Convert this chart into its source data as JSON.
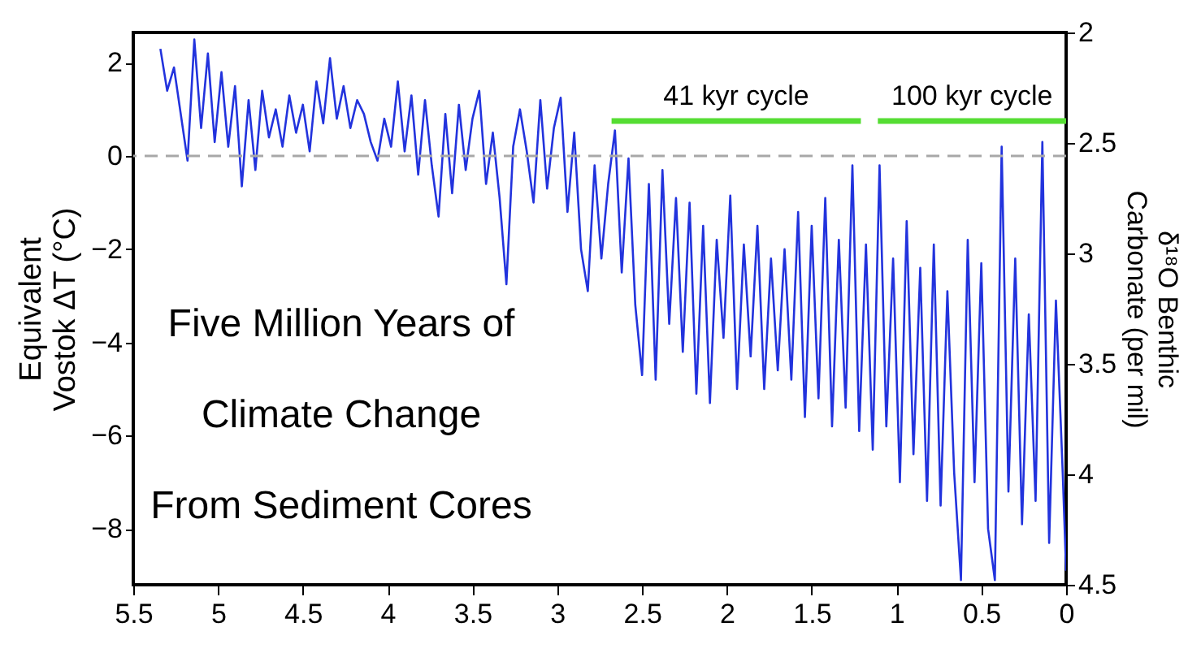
{
  "chart_data": {
    "type": "line",
    "ylabel": "Equivalent\nVostok ΔT (°C)",
    "y2label": "δ¹⁸O Benthic\nCarbonate (per mil)",
    "annotations": [
      "Five Million Years of\nClimate Change\nFrom Sediment Cores"
    ],
    "xlim": [
      5.5,
      0
    ],
    "xticks": [
      5.5,
      5,
      4.5,
      4,
      3.5,
      3,
      2.5,
      2,
      1.5,
      1,
      0.5,
      0
    ],
    "ylim": [
      -9.2,
      2.65
    ],
    "yticks": [
      -8,
      -6,
      -4,
      -2,
      0,
      2
    ],
    "y2lim": [
      4.5,
      2
    ],
    "y2ticks": [
      4.5,
      4,
      3.5,
      3,
      2.5,
      2
    ],
    "grid": false,
    "marker": "none",
    "line_style": "solid",
    "ref_lines": [
      {
        "axis": "y",
        "value": 0,
        "color": "#a8a8a8",
        "line_style": "dashed"
      }
    ],
    "series": [
      {
        "name": "41 kyr cycle",
        "type": "line",
        "color": "#55dd33",
        "x": [
          2.68,
          1.21
        ],
        "values": [
          0.75,
          0.75
        ]
      },
      {
        "name": "100 kyr cycle",
        "type": "line",
        "color": "#55dd33",
        "x": [
          1.11,
          0
        ],
        "values": [
          0.75,
          0.75
        ]
      },
      {
        "color": "#2233dd",
        "x": [
          5.34,
          5.3,
          5.26,
          5.22,
          5.18,
          5.14,
          5.1,
          5.06,
          5.02,
          4.98,
          4.94,
          4.9,
          4.86,
          4.82,
          4.78,
          4.74,
          4.7,
          4.66,
          4.62,
          4.58,
          4.54,
          4.5,
          4.46,
          4.42,
          4.38,
          4.34,
          4.3,
          4.26,
          4.22,
          4.18,
          4.14,
          4.1,
          4.06,
          4.02,
          3.98,
          3.94,
          3.9,
          3.86,
          3.82,
          3.78,
          3.74,
          3.7,
          3.66,
          3.62,
          3.58,
          3.54,
          3.5,
          3.46,
          3.42,
          3.38,
          3.34,
          3.3,
          3.26,
          3.22,
          3.18,
          3.14,
          3.1,
          3.06,
          3.02,
          2.98,
          2.94,
          2.9,
          2.86,
          2.82,
          2.78,
          2.74,
          2.7,
          2.66,
          2.62,
          2.58,
          2.54,
          2.5,
          2.46,
          2.42,
          2.38,
          2.34,
          2.3,
          2.26,
          2.22,
          2.18,
          2.14,
          2.1,
          2.06,
          2.02,
          1.98,
          1.94,
          1.9,
          1.86,
          1.82,
          1.78,
          1.74,
          1.7,
          1.66,
          1.62,
          1.58,
          1.54,
          1.5,
          1.46,
          1.42,
          1.38,
          1.34,
          1.3,
          1.26,
          1.22,
          1.18,
          1.14,
          1.1,
          1.06,
          1.02,
          0.98,
          0.94,
          0.9,
          0.86,
          0.82,
          0.78,
          0.74,
          0.7,
          0.66,
          0.62,
          0.58,
          0.54,
          0.5,
          0.46,
          0.42,
          0.38,
          0.34,
          0.3,
          0.26,
          0.22,
          0.18,
          0.14,
          0.1,
          0.06,
          0.02,
          0.0
        ],
        "values": [
          2.3,
          1.4,
          1.9,
          0.9,
          -0.1,
          2.5,
          0.6,
          2.2,
          0.3,
          1.8,
          0.2,
          1.5,
          -0.65,
          1.2,
          -0.3,
          1.4,
          0.4,
          1.0,
          0.2,
          1.3,
          0.5,
          1.1,
          0.1,
          1.6,
          0.7,
          2.1,
          0.8,
          1.5,
          0.6,
          1.2,
          0.9,
          0.3,
          -0.1,
          0.8,
          0.2,
          1.6,
          0.1,
          1.3,
          -0.4,
          1.2,
          -0.2,
          -1.3,
          0.9,
          -0.8,
          1.1,
          -0.3,
          0.8,
          1.4,
          -0.6,
          0.5,
          -0.9,
          -2.75,
          0.2,
          1.0,
          0.1,
          -1.0,
          1.2,
          -0.7,
          0.6,
          1.25,
          -1.2,
          0.5,
          -2.0,
          -2.9,
          -0.2,
          -2.2,
          -0.6,
          0.55,
          -2.5,
          -0.05,
          -3.2,
          -4.7,
          -0.6,
          -4.8,
          -0.3,
          -3.6,
          -0.9,
          -4.2,
          -1.0,
          -5.1,
          -1.5,
          -5.3,
          -1.8,
          -3.9,
          -0.85,
          -5.0,
          -1.9,
          -4.3,
          -1.5,
          -5.0,
          -2.2,
          -4.6,
          -2.0,
          -4.8,
          -1.2,
          -5.6,
          -1.5,
          -5.2,
          -0.9,
          -5.8,
          -1.8,
          -5.4,
          -0.2,
          -5.9,
          -1.9,
          -6.3,
          -0.2,
          -5.8,
          -2.2,
          -7.0,
          -1.4,
          -6.4,
          -2.4,
          -7.4,
          -1.9,
          -7.5,
          -2.9,
          -6.8,
          -9.1,
          -1.8,
          -7.0,
          -2.3,
          -8.0,
          -9.1,
          0.2,
          -7.2,
          -2.2,
          -7.9,
          -3.4,
          -7.4,
          0.3,
          -8.3,
          -3.1,
          -6.8,
          -8.9
        ]
      }
    ]
  }
}
